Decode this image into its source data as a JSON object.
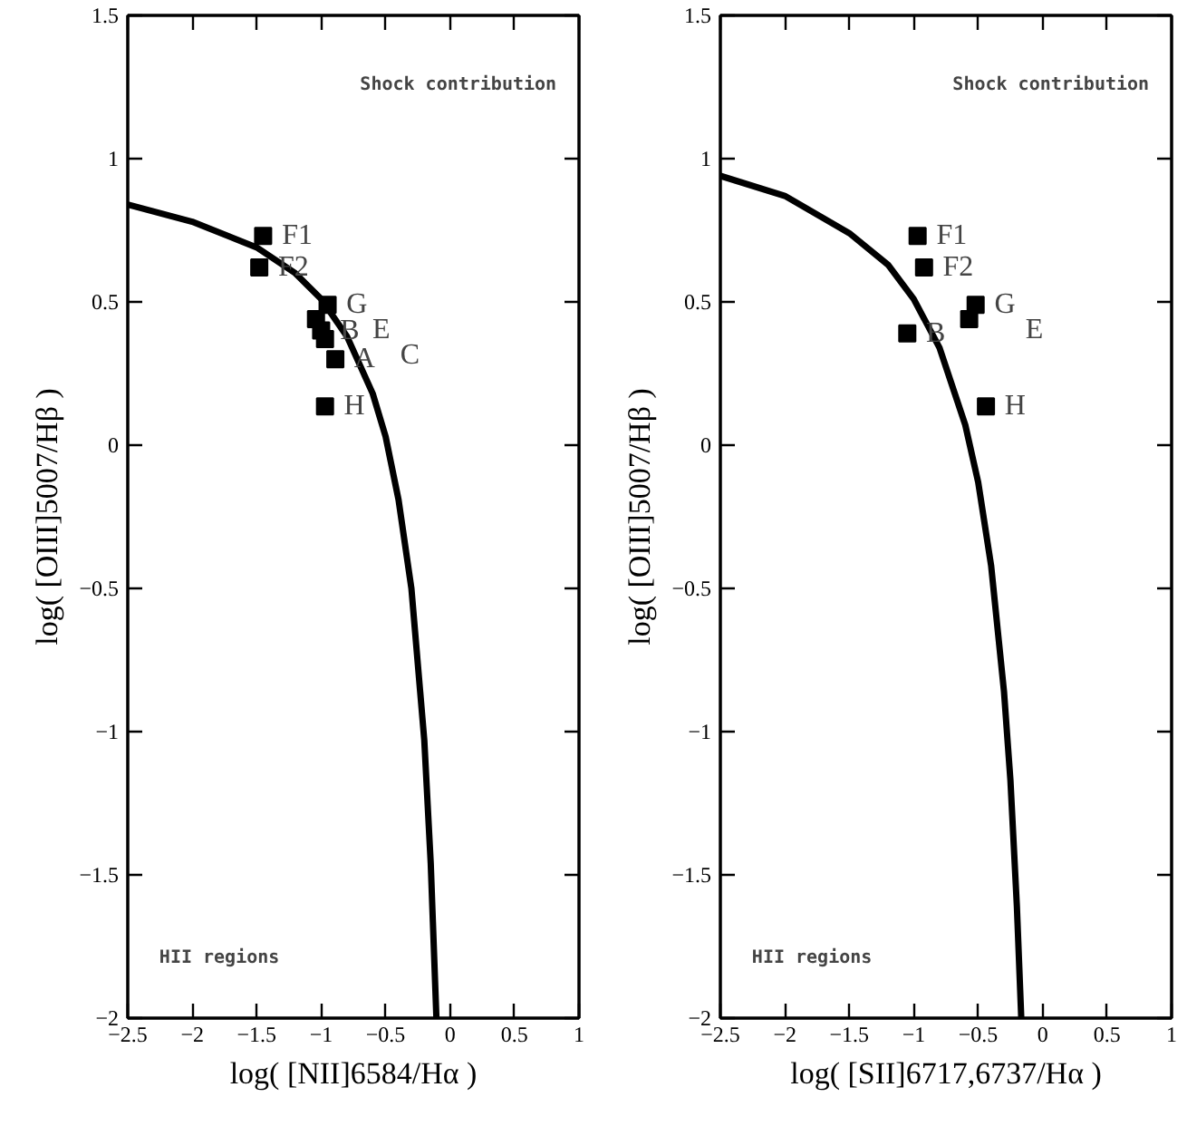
{
  "chart_data": [
    {
      "type": "scatter",
      "xlabel": "log( [NII]6584/Hα )",
      "ylabel": "log( [OIII]5007/Hβ )",
      "xlim": [
        -2.5,
        1
      ],
      "ylim": [
        -2,
        1.5
      ],
      "xticks": [
        -2.5,
        -2,
        -1.5,
        -1,
        -0.5,
        0,
        0.5,
        1
      ],
      "yticks": [
        -2,
        -1.5,
        -1,
        -0.5,
        0,
        0.5,
        1,
        1.5
      ],
      "grid": false,
      "annotations": [
        "Shock contribution",
        "HII regions",
        {
          "text": "F1",
          "x": -1.45,
          "y": 0.73
        },
        {
          "text": "F2",
          "x": -1.48,
          "y": 0.62
        },
        {
          "text": "G",
          "x": -0.95,
          "y": 0.49
        },
        {
          "text": "E",
          "x": -1.04,
          "y": 0.44
        },
        {
          "text": "B",
          "x": -1.0,
          "y": 0.4
        },
        {
          "text": "C",
          "x": -0.97,
          "y": 0.37
        },
        {
          "text": "A",
          "x": -0.89,
          "y": 0.3
        },
        {
          "text": "H",
          "x": -0.97,
          "y": 0.135
        }
      ],
      "series": [
        {
          "marker": "square",
          "color": "#000000",
          "x": [
            -1.45,
            -1.48,
            -0.95,
            -1.04,
            -1.0,
            -0.97,
            -0.89,
            -0.97
          ],
          "values": [
            0.73,
            0.62,
            0.49,
            0.44,
            0.4,
            0.37,
            0.3,
            0.135
          ]
        },
        {
          "type": "line",
          "color": "#000000",
          "x": [
            -2.5,
            -2.0,
            -1.5,
            -1.2,
            -1.0,
            -0.8,
            -0.6,
            -0.5,
            -0.4,
            -0.3,
            -0.2,
            -0.15,
            -0.106
          ],
          "values": [
            0.84,
            0.78,
            0.69,
            0.6,
            0.51,
            0.38,
            0.18,
            0.03,
            -0.19,
            -0.5,
            -1.03,
            -1.46,
            -2.0
          ]
        }
      ]
    },
    {
      "type": "scatter",
      "xlabel": "log( [SII]6717,6737/Hα )",
      "ylabel": "log( [OIII]5007/Hβ )",
      "xlim": [
        -2.5,
        1
      ],
      "ylim": [
        -2,
        1.5
      ],
      "xticks": [
        -2.5,
        -2,
        -1.5,
        -1,
        -0.5,
        0,
        0.5,
        1
      ],
      "yticks": [
        -2,
        -1.5,
        -1,
        -0.5,
        0,
        0.5,
        1,
        1.5
      ],
      "grid": false,
      "annotations": [
        "Shock contribution",
        "HII regions",
        {
          "text": "F1",
          "x": -0.97,
          "y": 0.73
        },
        {
          "text": "F2",
          "x": -0.92,
          "y": 0.62
        },
        {
          "text": "G",
          "x": -0.52,
          "y": 0.49
        },
        {
          "text": "E",
          "x": -0.57,
          "y": 0.44
        },
        {
          "text": "B",
          "x": -1.05,
          "y": 0.39
        },
        {
          "text": "H",
          "x": -0.44,
          "y": 0.135
        }
      ],
      "series": [
        {
          "marker": "square",
          "color": "#000000",
          "x": [
            -0.97,
            -0.92,
            -0.52,
            -0.57,
            -1.05,
            -0.44
          ],
          "values": [
            0.73,
            0.62,
            0.49,
            0.44,
            0.39,
            0.135
          ]
        },
        {
          "type": "line",
          "color": "#000000",
          "x": [
            -2.5,
            -2.0,
            -1.5,
            -1.2,
            -1.0,
            -0.8,
            -0.6,
            -0.5,
            -0.4,
            -0.3,
            -0.25,
            -0.2,
            -0.166
          ],
          "values": [
            0.94,
            0.87,
            0.74,
            0.63,
            0.51,
            0.34,
            0.07,
            -0.13,
            -0.42,
            -0.86,
            -1.17,
            -1.61,
            -2.0
          ]
        }
      ]
    }
  ]
}
